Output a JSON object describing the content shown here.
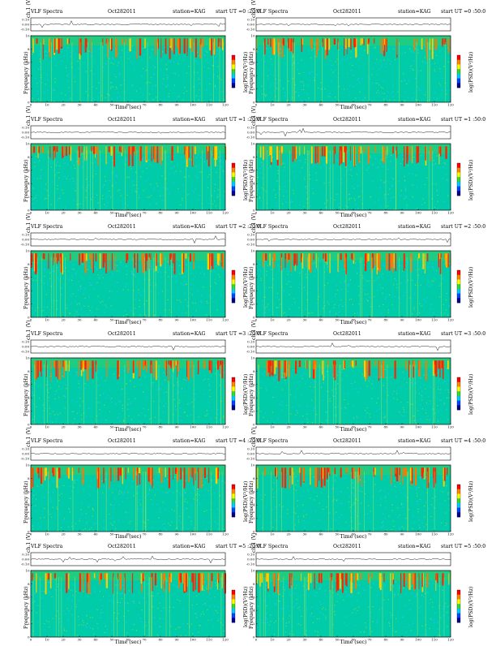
{
  "chart_data": [
    {
      "type": "heatmap",
      "title": "VLF Spectra",
      "date": "Oct282011",
      "station": "station=KAG",
      "start": "start  UT =0 :20:0",
      "ch_label": "ch.1 (V)",
      "ylabel": "Frequency (kHz)",
      "xlabel": "Time (sec)",
      "colorbar_label": "log(PSD)(V²/Hz)",
      "ch_ticks": [
        "0.10",
        "0.00",
        "-0.10"
      ],
      "x_ticks": [
        "0",
        "10",
        "20",
        "30",
        "40",
        "50",
        "60",
        "70",
        "80",
        "90",
        "100",
        "110",
        "120"
      ],
      "y_ticks": [
        "0",
        "2",
        "4",
        "6",
        "8",
        "10"
      ],
      "xlim": [
        0,
        120
      ],
      "ylim": [
        0,
        10
      ]
    },
    {
      "type": "heatmap",
      "title": "VLF Spectra",
      "date": "Oct282011",
      "station": "station=KAG",
      "start": "start  UT =0 :50:0",
      "ch_label": "ch.1 (V)",
      "ylabel": "Frequency (kHz)",
      "xlabel": "Time (sec)",
      "colorbar_label": "log(PSD)(V²/Hz)",
      "ch_ticks": [
        "0.10",
        "0.00",
        "-0.10"
      ],
      "x_ticks": [
        "0",
        "10",
        "20",
        "30",
        "40",
        "50",
        "60",
        "70",
        "80",
        "90",
        "100",
        "110",
        "120"
      ],
      "y_ticks": [
        "0",
        "2",
        "4",
        "6",
        "8",
        "10"
      ],
      "xlim": [
        0,
        120
      ],
      "ylim": [
        0,
        10
      ]
    },
    {
      "type": "heatmap",
      "title": "VLF Spectra",
      "date": "Oct282011",
      "station": "station=KAG",
      "start": "start  UT =1 :20:0",
      "ch_label": "ch.1 (V)",
      "ylabel": "Frequency (kHz)",
      "xlabel": "Time (sec)",
      "colorbar_label": "log(PSD)(V²/Hz)",
      "ch_ticks": [
        "0.10",
        "0.00",
        "-0.10"
      ],
      "x_ticks": [
        "0",
        "10",
        "20",
        "30",
        "40",
        "50",
        "60",
        "70",
        "80",
        "90",
        "100",
        "110",
        "120"
      ],
      "y_ticks": [
        "0",
        "2",
        "4",
        "6",
        "8",
        "10"
      ],
      "xlim": [
        0,
        120
      ],
      "ylim": [
        0,
        10
      ]
    },
    {
      "type": "heatmap",
      "title": "VLF Spectra",
      "date": "Oct282011",
      "station": "station=KAG",
      "start": "start  UT =1 :50:0",
      "ch_label": "ch.1 (V)",
      "ylabel": "Frequency (kHz)",
      "xlabel": "Time (sec)",
      "colorbar_label": "log(PSD)(V²/Hz)",
      "ch_ticks": [
        "0.10",
        "0.00",
        "-0.10"
      ],
      "x_ticks": [
        "0",
        "10",
        "20",
        "30",
        "40",
        "50",
        "60",
        "70",
        "80",
        "90",
        "100",
        "110",
        "120"
      ],
      "y_ticks": [
        "0",
        "2",
        "4",
        "6",
        "8",
        "10"
      ],
      "xlim": [
        0,
        120
      ],
      "ylim": [
        0,
        10
      ]
    },
    {
      "type": "heatmap",
      "title": "VLF Spectra",
      "date": "Oct282011",
      "station": "station=KAG",
      "start": "start  UT =2 :20:0",
      "ch_label": "ch.1 (V)",
      "ylabel": "Frequency (kHz)",
      "xlabel": "Time (sec)",
      "colorbar_label": "log(PSD)(V²/Hz)",
      "ch_ticks": [
        "0.10",
        "0.00",
        "-0.10"
      ],
      "x_ticks": [
        "0",
        "10",
        "20",
        "30",
        "40",
        "50",
        "60",
        "70",
        "80",
        "90",
        "100",
        "110",
        "120"
      ],
      "y_ticks": [
        "0",
        "2",
        "4",
        "6",
        "8",
        "10"
      ],
      "xlim": [
        0,
        120
      ],
      "ylim": [
        0,
        10
      ]
    },
    {
      "type": "heatmap",
      "title": "VLF Spectra",
      "date": "Oct282011",
      "station": "station=KAG",
      "start": "start  UT =2 :50:0",
      "ch_label": "ch.1 (V)",
      "ylabel": "Frequency (kHz)",
      "xlabel": "Time (sec)",
      "colorbar_label": "log(PSD)(V²/Hz)",
      "ch_ticks": [
        "0.10",
        "0.00",
        "-0.10"
      ],
      "x_ticks": [
        "0",
        "10",
        "20",
        "30",
        "40",
        "50",
        "60",
        "70",
        "80",
        "90",
        "100",
        "110",
        "120"
      ],
      "y_ticks": [
        "0",
        "2",
        "4",
        "6",
        "8",
        "10"
      ],
      "xlim": [
        0,
        120
      ],
      "ylim": [
        0,
        10
      ]
    },
    {
      "type": "heatmap",
      "title": "VLF Spectra",
      "date": "Oct282011",
      "station": "station=KAG",
      "start": "start  UT =3 :20:0",
      "ch_label": "ch.1 (V)",
      "ylabel": "Frequency (kHz)",
      "xlabel": "Time (sec)",
      "colorbar_label": "log(PSD)(V²/Hz)",
      "ch_ticks": [
        "0.10",
        "0.00",
        "-0.10"
      ],
      "x_ticks": [
        "0",
        "10",
        "20",
        "30",
        "40",
        "50",
        "60",
        "70",
        "80",
        "90",
        "100",
        "110",
        "120"
      ],
      "y_ticks": [
        "0",
        "2",
        "4",
        "6",
        "8",
        "10"
      ],
      "xlim": [
        0,
        120
      ],
      "ylim": [
        0,
        10
      ]
    },
    {
      "type": "heatmap",
      "title": "VLF Spectra",
      "date": "Oct282011",
      "station": "station=KAG",
      "start": "start  UT =3 :50:0",
      "ch_label": "ch.1 (V)",
      "ylabel": "Frequency (kHz)",
      "xlabel": "Time (sec)",
      "colorbar_label": "log(PSD)(V²/Hz)",
      "ch_ticks": [
        "0.10",
        "0.00",
        "-0.10"
      ],
      "x_ticks": [
        "0",
        "10",
        "20",
        "30",
        "40",
        "50",
        "60",
        "70",
        "80",
        "90",
        "100",
        "110",
        "120"
      ],
      "y_ticks": [
        "0",
        "2",
        "4",
        "6",
        "8",
        "10"
      ],
      "xlim": [
        0,
        120
      ],
      "ylim": [
        0,
        10
      ]
    },
    {
      "type": "heatmap",
      "title": "VLF Spectra",
      "date": "Oct282011",
      "station": "station=KAG",
      "start": "start  UT =4 :20:0",
      "ch_label": "ch.1 (V)",
      "ylabel": "Frequency (kHz)",
      "xlabel": "Time (sec)",
      "colorbar_label": "log(PSD)(V²/Hz)",
      "ch_ticks": [
        "0.10",
        "0.00",
        "-0.10"
      ],
      "x_ticks": [
        "0",
        "10",
        "20",
        "30",
        "40",
        "50",
        "60",
        "70",
        "80",
        "90",
        "100",
        "110",
        "120"
      ],
      "y_ticks": [
        "0",
        "2",
        "4",
        "6",
        "8",
        "10"
      ],
      "xlim": [
        0,
        120
      ],
      "ylim": [
        0,
        10
      ]
    },
    {
      "type": "heatmap",
      "title": "VLF Spectra",
      "date": "Oct282011",
      "station": "station=KAG",
      "start": "start  UT =4 :50:0",
      "ch_label": "ch.1 (V)",
      "ylabel": "Frequency (kHz)",
      "xlabel": "Time (sec)",
      "colorbar_label": "log(PSD)(V²/Hz)",
      "ch_ticks": [
        "0.10",
        "0.00",
        "-0.10"
      ],
      "x_ticks": [
        "0",
        "10",
        "20",
        "30",
        "40",
        "50",
        "60",
        "70",
        "80",
        "90",
        "100",
        "110",
        "120"
      ],
      "y_ticks": [
        "0",
        "2",
        "4",
        "6",
        "8",
        "10"
      ],
      "xlim": [
        0,
        120
      ],
      "ylim": [
        0,
        10
      ]
    },
    {
      "type": "heatmap",
      "title": "VLF Spectra",
      "date": "Oct282011",
      "station": "station=KAG",
      "start": "start  UT =5 :20:0",
      "ch_label": "ch.1 (V)",
      "ylabel": "Frequency (kHz)",
      "xlabel": "Time (sec)",
      "colorbar_label": "log(PSD)(V²/Hz)",
      "ch_ticks": [
        "0.10",
        "0.00",
        "-0.10"
      ],
      "x_ticks": [
        "0",
        "10",
        "20",
        "30",
        "40",
        "50",
        "60",
        "70",
        "80",
        "90",
        "100",
        "110",
        "120"
      ],
      "y_ticks": [
        "0",
        "2",
        "4",
        "6",
        "8",
        "10"
      ],
      "xlim": [
        0,
        120
      ],
      "ylim": [
        0,
        10
      ]
    },
    {
      "type": "heatmap",
      "title": "VLF Spectra",
      "date": "Oct282011",
      "station": "station=KAG",
      "start": "start  UT =5 :50:0",
      "ch_label": "ch.1 (V)",
      "ylabel": "Frequency (kHz)",
      "xlabel": "Time (sec)",
      "colorbar_label": "log(PSD)(V²/Hz)",
      "ch_ticks": [
        "0.10",
        "0.00",
        "-0.10"
      ],
      "x_ticks": [
        "0",
        "10",
        "20",
        "30",
        "40",
        "50",
        "60",
        "70",
        "80",
        "90",
        "100",
        "110",
        "120"
      ],
      "y_ticks": [
        "0",
        "2",
        "4",
        "6",
        "8",
        "10"
      ],
      "xlim": [
        0,
        120
      ],
      "ylim": [
        0,
        10
      ]
    }
  ],
  "colors": {
    "background": "#00ccaa",
    "colorbar": [
      "#ff0000",
      "#ff8800",
      "#ffff00",
      "#33dd33",
      "#00ccff",
      "#0044ff",
      "#000088"
    ],
    "emission": "#ff2200",
    "trace": "#222222"
  }
}
